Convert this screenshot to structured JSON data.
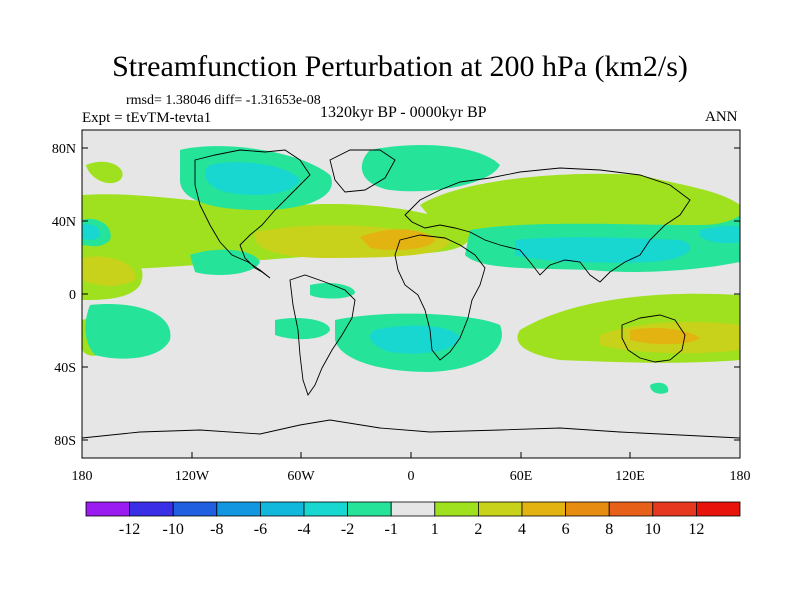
{
  "title": "Streamfunction Perturbation at 200 hPa (km2/s)",
  "stats": {
    "text": "rmsd= 1.38046 diff= -1.31653e-08"
  },
  "experiment": {
    "text": "Expt = tEvTM-tevta1"
  },
  "period": {
    "text": "1320kyr BP - 0000kyr BP"
  },
  "season": {
    "text": "ANN"
  },
  "axes": {
    "lat_labels": [
      "80N",
      "40N",
      "0",
      "40S",
      "80S"
    ],
    "lon_labels": [
      "180",
      "120W",
      "60W",
      "0",
      "60E",
      "120E",
      "180"
    ]
  },
  "colorbar": {
    "labels": [
      "-12",
      "-10",
      "-8",
      "-6",
      "-4",
      "-2",
      "-1",
      "1",
      "2",
      "4",
      "6",
      "8",
      "10",
      "12"
    ],
    "colors": [
      "#9b1cf0",
      "#3a2ee6",
      "#1f5fe0",
      "#1296df",
      "#12b8dc",
      "#17d7d0",
      "#26e39a",
      "#e6e6e6",
      "#9fe11e",
      "#c9d21a",
      "#e3b312",
      "#e68c10",
      "#e6601a",
      "#e6381e",
      "#e8140c"
    ]
  },
  "colors": {
    "background": "#e6e6e6",
    "coast": "#000000"
  }
}
